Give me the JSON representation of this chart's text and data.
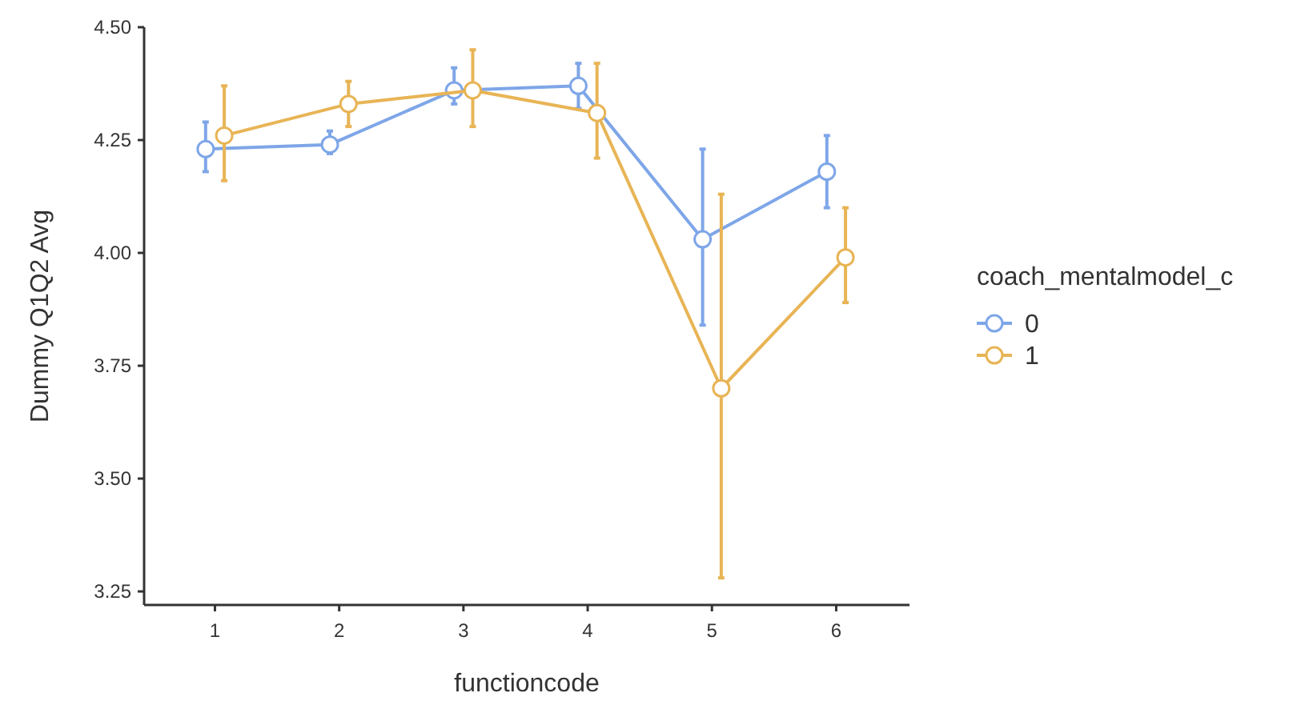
{
  "chart_data": {
    "type": "line",
    "xlabel": "functioncode",
    "ylabel": "Dummy Q1Q2 Avg",
    "legend_title": "coach_mentalmodel_c",
    "legend": "right",
    "marker": "circle",
    "line_style": "solid",
    "grid": false,
    "categories": [
      "1",
      "2",
      "3",
      "4",
      "5",
      "6"
    ],
    "ylim": [
      3.22,
      4.5
    ],
    "yticks": [
      {
        "value": 3.25,
        "label": "3.25"
      },
      {
        "value": 3.5,
        "label": "3.50"
      },
      {
        "value": 3.75,
        "label": "3.75"
      },
      {
        "value": 4,
        "label": "4.00"
      },
      {
        "value": 4.25,
        "label": "4.25"
      },
      {
        "value": 4.5,
        "label": "4.50"
      }
    ],
    "series": [
      {
        "name": "0",
        "color": "#7ea6e8",
        "values": [
          4.23,
          4.24,
          4.36,
          4.37,
          4.03,
          4.18
        ],
        "errors": [
          [
            4.18,
            4.29
          ],
          [
            4.22,
            4.27
          ],
          [
            4.33,
            4.41
          ],
          [
            4.32,
            4.42
          ],
          [
            3.84,
            4.23
          ],
          [
            4.1,
            4.26
          ]
        ]
      },
      {
        "name": "1",
        "color": "#e8b455",
        "values": [
          4.26,
          4.33,
          4.36,
          4.31,
          3.7,
          3.99
        ],
        "errors": [
          [
            4.16,
            4.37
          ],
          [
            4.28,
            4.38
          ],
          [
            4.28,
            4.45
          ],
          [
            4.21,
            4.42
          ],
          [
            3.28,
            4.13
          ],
          [
            3.89,
            4.1
          ]
        ]
      }
    ]
  }
}
